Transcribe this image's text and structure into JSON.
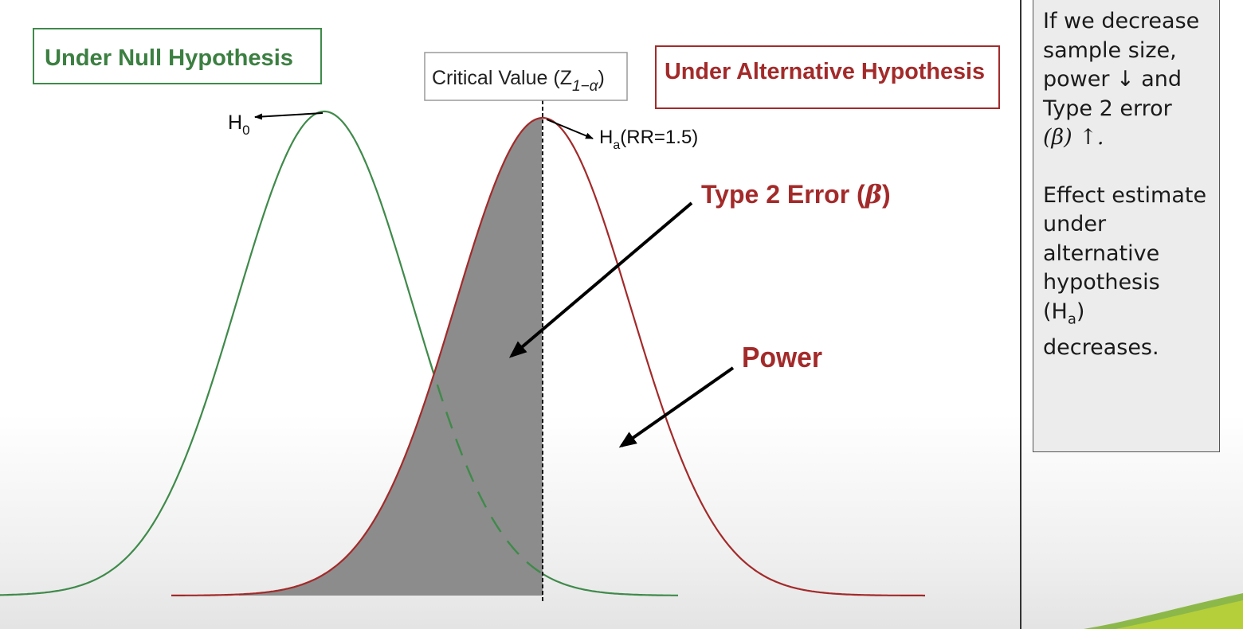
{
  "diagram": {
    "null_box_label": "Under Null Hypothesis",
    "alt_box_label": "Under Alternative Hypothesis",
    "critical_value_label": "Critical Value (Z",
    "critical_value_sub": "1−α",
    "critical_value_close": ")",
    "h0_label": "H",
    "h0_sub": "0",
    "ha_label": "H",
    "ha_sub": "a",
    "ha_suffix": "(RR=1.5)",
    "type2_label": "Type 2 Error (",
    "type2_beta": "β",
    "type2_close": ")",
    "power_label": "Power",
    "colors": {
      "null_curve": "#3f8a4a",
      "alt_curve": "#a32a2a",
      "shade": "#8c8c8c",
      "null_box_border": "#3f8a4a",
      "alt_box_border": "#a32a2a",
      "null_text": "#3b7f41",
      "alt_text": "#a32a2a"
    }
  },
  "side_panel": {
    "line1": "If we decrease",
    "line2": "sample size,",
    "line3": "power ↓  and",
    "line4": "Type 2 error",
    "line5": "(β) ↑.",
    "line6": "Effect estimate",
    "line7": "under",
    "line8": "alternative",
    "line9": "hypothesis",
    "line10_open": "(H",
    "line10_sub": "a",
    "line10_close": ")",
    "line11": "decreases."
  }
}
